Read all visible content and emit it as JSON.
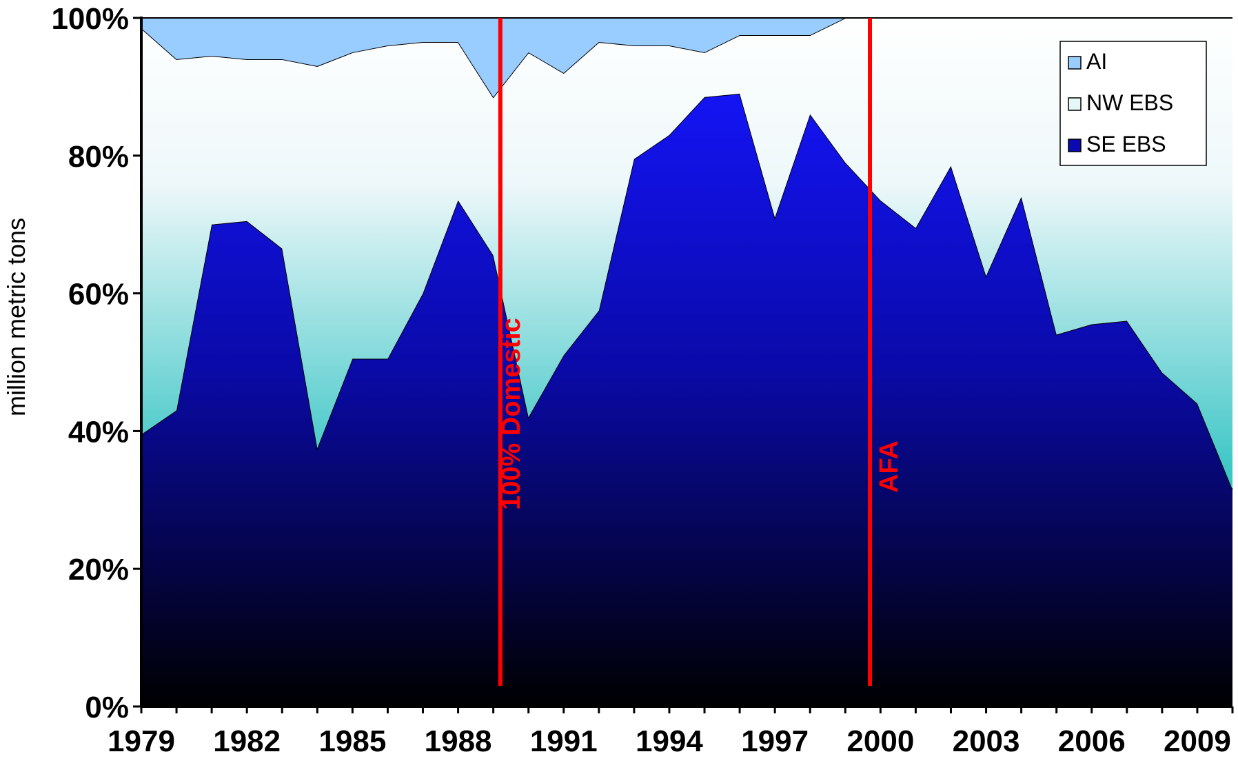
{
  "chart_data": {
    "type": "area",
    "stacking": "percent",
    "ylabel": "million metric tons",
    "xlabel": "",
    "title": "",
    "ylim": [
      0,
      100
    ],
    "xlim": [
      1979,
      2010
    ],
    "y_ticks": [
      "0%",
      "20%",
      "40%",
      "60%",
      "80%",
      "100%"
    ],
    "y_tick_values": [
      0,
      20,
      40,
      60,
      80,
      100
    ],
    "x_ticks": [
      "1979",
      "1982",
      "1985",
      "1988",
      "1991",
      "1994",
      "1997",
      "2000",
      "2003",
      "2006",
      "2009"
    ],
    "x_tick_values": [
      1979,
      1982,
      1985,
      1988,
      1991,
      1994,
      1997,
      2000,
      2003,
      2006,
      2009
    ],
    "x": [
      1979,
      1980,
      1981,
      1982,
      1983,
      1984,
      1985,
      1986,
      1987,
      1988,
      1989,
      1990,
      1991,
      1992,
      1993,
      1994,
      1995,
      1996,
      1997,
      1998,
      1999,
      2000,
      2001,
      2002,
      2003,
      2004,
      2005,
      2006,
      2007,
      2008,
      2009,
      2010
    ],
    "series": [
      {
        "name": "SE EBS",
        "cumulative_top": [
          39.5,
          43,
          70,
          70.5,
          66.5,
          37.5,
          50.5,
          50.5,
          60,
          73.5,
          65.5,
          42,
          51,
          57.5,
          79.5,
          83,
          88.5,
          89,
          71,
          86,
          79,
          73.5,
          69.5,
          78.5,
          62.5,
          74,
          54,
          55.5,
          56,
          48.5,
          44,
          31.5
        ],
        "color": "#1212e8"
      },
      {
        "name": "NW EBS",
        "cumulative_top": [
          98.5,
          94,
          94.5,
          94,
          94,
          93,
          95,
          96,
          96.5,
          96.5,
          88.5,
          95,
          92,
          96.5,
          96,
          96,
          95,
          97.5,
          97.5,
          97.5,
          100,
          100,
          100,
          100,
          100,
          100,
          100,
          100,
          100,
          100,
          100,
          100
        ],
        "color": "#4dc8c8"
      },
      {
        "name": "AI",
        "cumulative_top": [
          100,
          100,
          100,
          100,
          100,
          100,
          100,
          100,
          100,
          100,
          100,
          100,
          100,
          100,
          100,
          100,
          100,
          100,
          100,
          100,
          100,
          100,
          100,
          100,
          100,
          100,
          100,
          100,
          100,
          100,
          100,
          100
        ],
        "color": "#99ccff"
      }
    ],
    "legend": [
      "AI",
      "NW EBS",
      "SE EBS"
    ],
    "legend_position": "top-right",
    "grid": false,
    "annotations": [
      {
        "text": "100% Domestic",
        "x": 1989.2,
        "color": "#ff0000"
      },
      {
        "text": "AFA",
        "x": 1999.7,
        "color": "#ff0000"
      }
    ]
  }
}
